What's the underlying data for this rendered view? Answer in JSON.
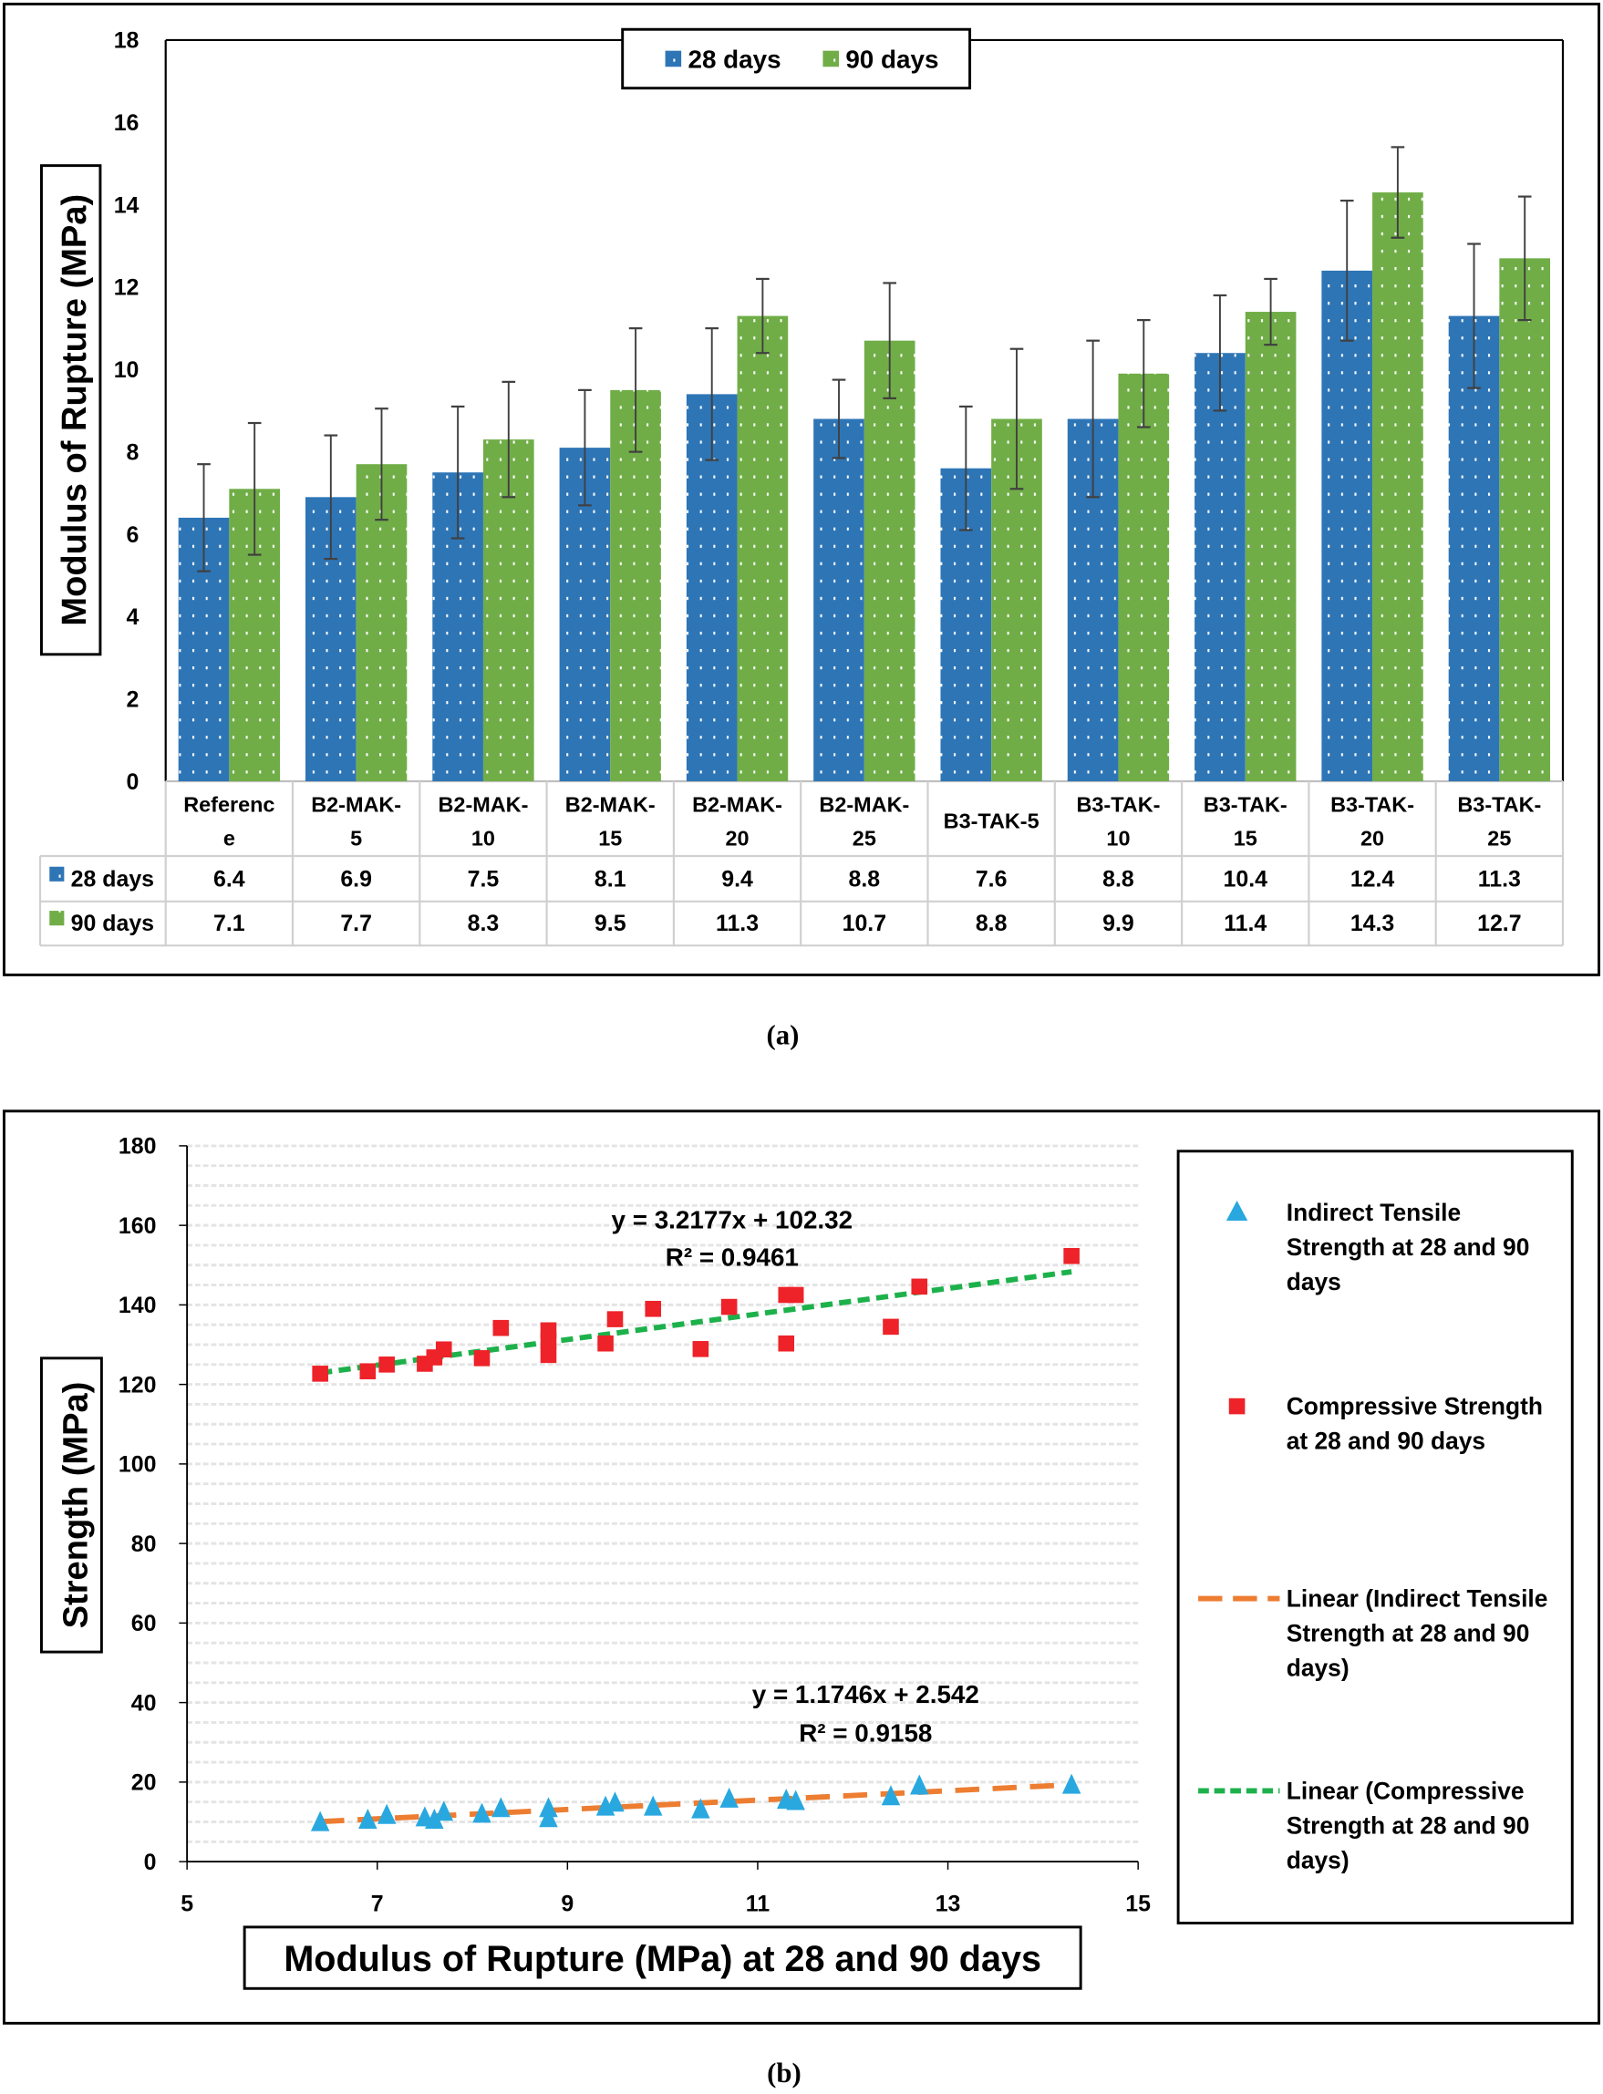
{
  "chart_data": [
    {
      "type": "bar",
      "title": "",
      "caption": "(a)",
      "ylabel": "Modulus of Rupture (MPa)",
      "xlabel": "",
      "ylim": [
        0,
        18
      ],
      "yticks": [
        "0",
        "2",
        "4",
        "6",
        "8",
        "10",
        "12",
        "14",
        "16",
        "18"
      ],
      "categories": [
        [
          "Referenc",
          "e"
        ],
        [
          "B2-MAK-",
          "5"
        ],
        [
          "B2-MAK-",
          "10"
        ],
        [
          "B2-MAK-",
          "15"
        ],
        [
          "B2-MAK-",
          "20"
        ],
        [
          "B2-MAK-",
          "25"
        ],
        [
          "B3-TAK-5"
        ],
        [
          "B3-TAK-",
          "10"
        ],
        [
          "B3-TAK-",
          "15"
        ],
        [
          "B3-TAK-",
          "20"
        ],
        [
          "B3-TAK-",
          "25"
        ]
      ],
      "legend_position": "top-center",
      "series": [
        {
          "name": "28 days",
          "color": "#2e75b6",
          "values": [
            6.4,
            6.9,
            7.5,
            8.1,
            9.4,
            8.8,
            7.6,
            8.8,
            10.4,
            12.4,
            11.3
          ],
          "labels": [
            "6.4",
            "6.9",
            "7.5",
            "8.1",
            "9.4",
            "8.8",
            "7.6",
            "8.8",
            "10.4",
            "12.4",
            "11.3"
          ],
          "errors": [
            1.3,
            1.5,
            1.6,
            1.4,
            1.6,
            0.95,
            1.5,
            1.9,
            1.4,
            1.7,
            1.75
          ]
        },
        {
          "name": "90 days",
          "color": "#70ad47",
          "values": [
            7.1,
            7.7,
            8.3,
            9.5,
            11.3,
            10.7,
            8.8,
            9.9,
            11.4,
            14.3,
            12.7
          ],
          "labels": [
            "7.1",
            "7.7",
            "8.3",
            "9.5",
            "11.3",
            "10.7",
            "8.8",
            "9.9",
            "11.4",
            "14.3",
            "12.7"
          ],
          "errors": [
            1.6,
            1.35,
            1.4,
            1.5,
            0.9,
            1.4,
            1.7,
            1.3,
            0.8,
            1.1,
            1.5
          ]
        }
      ]
    },
    {
      "type": "scatter",
      "caption": "(b)",
      "xlabel": "Modulus of Rupture (MPa) at 28 and 90 days",
      "ylabel": "Strength (MPa)",
      "xlim": [
        5,
        15
      ],
      "ylim": [
        0,
        180
      ],
      "xticks": [
        "5",
        "7",
        "9",
        "11",
        "13",
        "15"
      ],
      "yticks": [
        "0",
        "20",
        "40",
        "60",
        "80",
        "100",
        "120",
        "140",
        "160",
        "180"
      ],
      "legend_position": "right",
      "series": [
        {
          "name": "Indirect Tensile Strength at 28 and 90 days",
          "legend_lines": [
            "Indirect Tensile",
            "Strength at 28 and 90",
            "days"
          ],
          "marker": "triangle",
          "color": "#29a8e0",
          "x": [
            6.4,
            6.9,
            7.1,
            7.5,
            7.6,
            7.7,
            8.1,
            8.3,
            8.8,
            8.8,
            9.4,
            9.5,
            9.9,
            10.4,
            10.7,
            11.3,
            11.4,
            12.4,
            12.7,
            14.3
          ],
          "y": [
            9.7,
            10.3,
            11.5,
            10.9,
            10.3,
            12.3,
            11.8,
            13.2,
            13.2,
            10.7,
            13.6,
            14.6,
            13.6,
            12.9,
            15.6,
            15.3,
            15.0,
            16.2,
            18.9,
            19.1
          ]
        },
        {
          "name": "Compressive Strength at 28 and 90 days",
          "legend_lines": [
            "Compressive Strength",
            "at 28 and 90 days"
          ],
          "marker": "square",
          "color": "#ee2229",
          "x": [
            6.4,
            6.9,
            7.1,
            7.5,
            7.6,
            7.7,
            8.1,
            8.3,
            8.8,
            8.8,
            8.8,
            9.4,
            9.5,
            9.9,
            10.4,
            10.7,
            11.3,
            11.4,
            11.3,
            12.4,
            12.7,
            14.3
          ],
          "y": [
            122.7,
            123.3,
            125.0,
            125.2,
            126.8,
            128.8,
            126.6,
            134.2,
            133.6,
            127.4,
            131.0,
            130.3,
            136.4,
            139.0,
            128.9,
            139.5,
            142.5,
            142.5,
            130.3,
            134.5,
            144.6,
            152.3
          ]
        }
      ],
      "trendlines": [
        {
          "name": "Linear (Indirect Tensile Strength at 28 and 90 days)",
          "legend_lines": [
            "Linear (Indirect Tensile",
            "Strength at 28 and 90",
            "days)"
          ],
          "color": "#ed7d31",
          "slope": 1.1746,
          "intercept": 2.542,
          "x_range": [
            6.4,
            14.3
          ],
          "equation": "y = 1.1746x + 2.542",
          "r2": "R² = 0.9158"
        },
        {
          "name": "Linear (Compressive Strength at 28 and 90 days)",
          "legend_lines": [
            "Linear (Compressive",
            "Strength at 28 and 90",
            "days)"
          ],
          "color": "#1db14b",
          "slope": 3.2177,
          "intercept": 102.32,
          "x_range": [
            6.4,
            14.3
          ],
          "equation": "y = 3.2177x + 102.32",
          "r2": "R² = 0.9461"
        }
      ]
    }
  ]
}
